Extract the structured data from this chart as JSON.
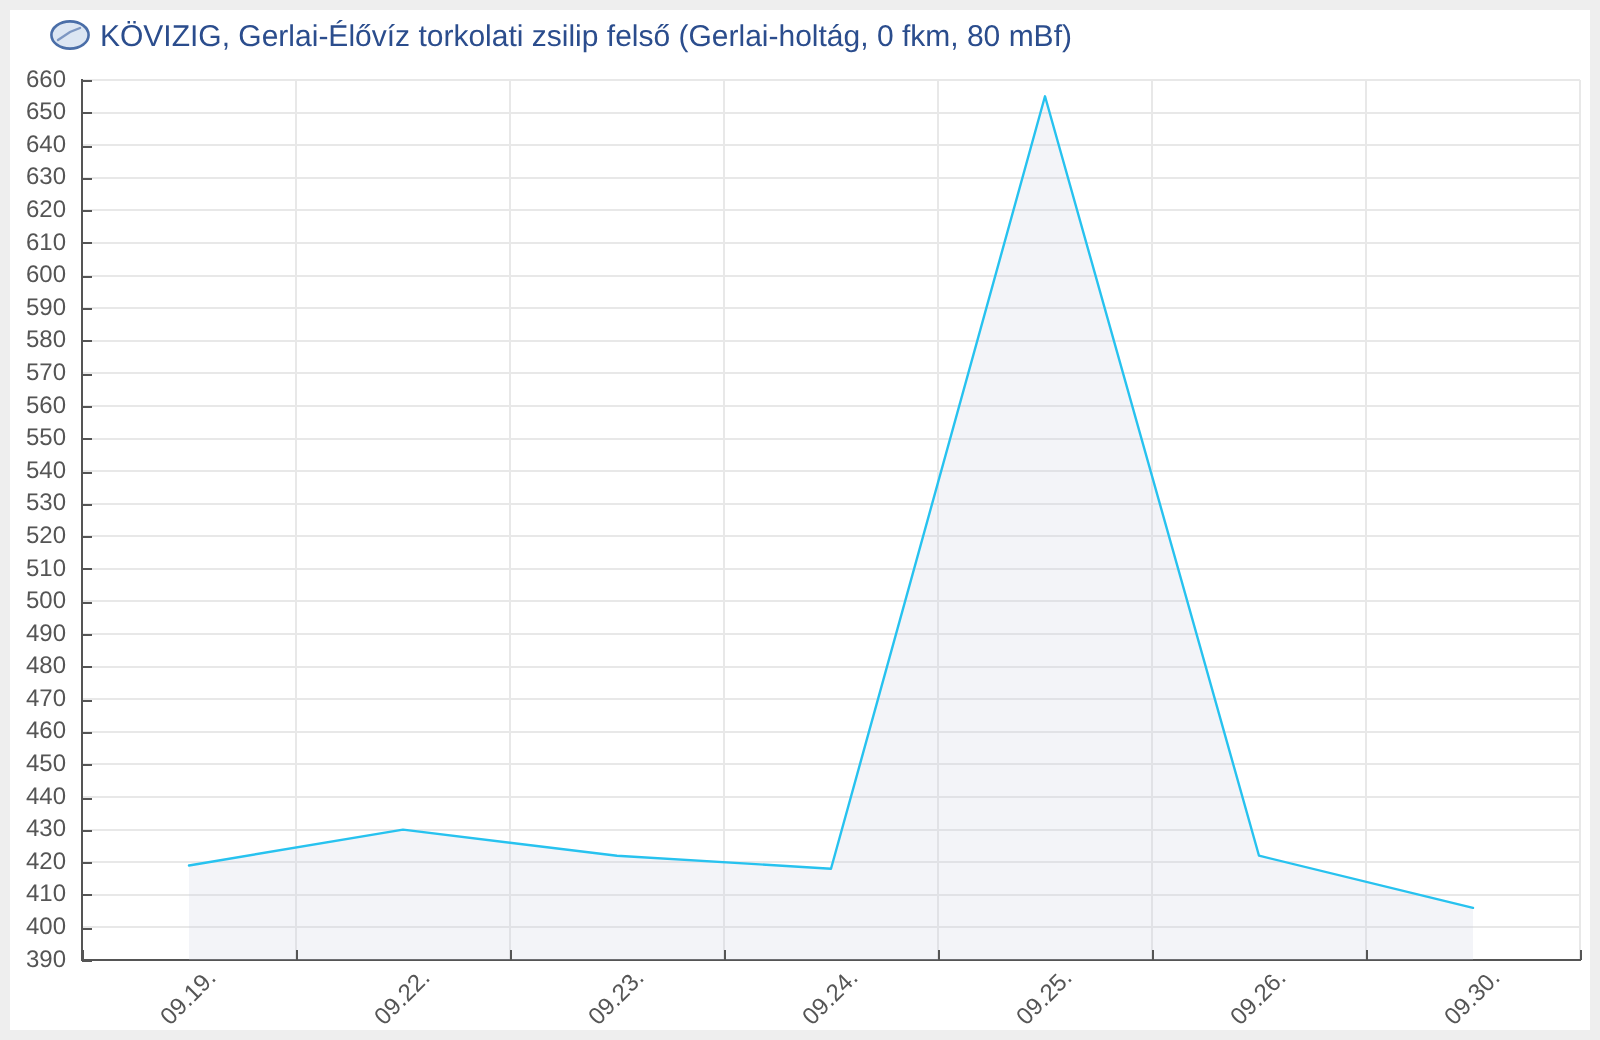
{
  "chart_data": {
    "type": "area",
    "title": "KÖVIZIG, Gerlai-Élővíz torkolati zsilip felső (Gerlai-holtág, 0 fkm, 80 mBf)",
    "categories": [
      "09.19.",
      "09.22.",
      "09.23.",
      "09.24.",
      "09.25.",
      "09.26.",
      "09.30."
    ],
    "series": [
      {
        "color": "#27c2ef",
        "values": [
          419,
          430,
          422,
          418,
          655,
          422,
          406
        ]
      }
    ],
    "ylim": [
      390,
      660
    ],
    "yticks": [
      390,
      400,
      410,
      420,
      430,
      440,
      450,
      460,
      470,
      480,
      490,
      500,
      510,
      520,
      530,
      540,
      550,
      560,
      570,
      580,
      590,
      600,
      610,
      620,
      630,
      640,
      650,
      660
    ],
    "grid": true,
    "marker": "none"
  }
}
